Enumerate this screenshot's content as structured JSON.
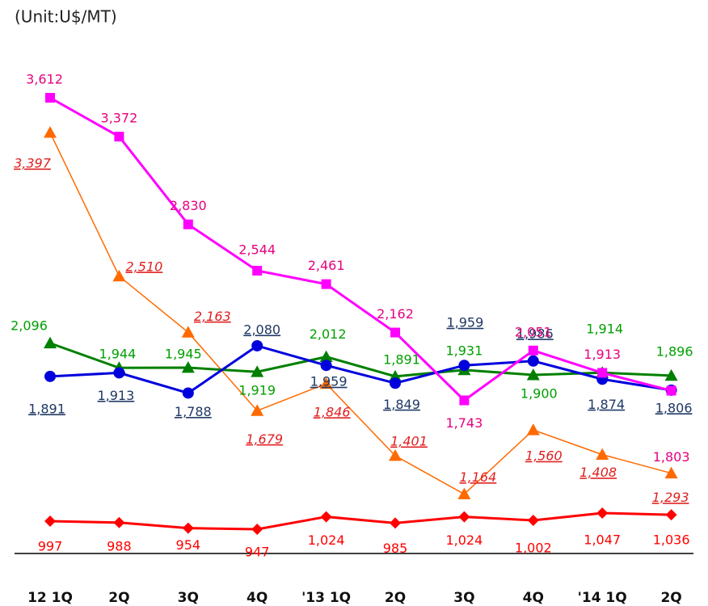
{
  "chart_data": {
    "type": "line",
    "title": "(Unit:U$/MT)",
    "categories": [
      "12 1Q",
      "2Q",
      "3Q",
      "4Q",
      "'13 1Q",
      "2Q",
      "3Q",
      "4Q",
      "'14 1Q",
      "2Q"
    ],
    "series": [
      {
        "color": "#ff0000",
        "marker": "diamond",
        "values": [
          997,
          988,
          954,
          947,
          1024,
          985,
          1024,
          1002,
          1047,
          1036
        ],
        "value_labels": [
          "997",
          "988",
          "954",
          "947",
          "1,024",
          "985",
          "1,024",
          "1,002",
          "1,047",
          "1,036"
        ]
      },
      {
        "color": "#ff6a00",
        "marker": "triangle",
        "values": [
          3397,
          2510,
          2163,
          1679,
          1846,
          1401,
          1164,
          1560,
          1408,
          1293
        ],
        "value_labels": [
          "3,397",
          "2,510",
          "2,163",
          "1,679",
          "1,846",
          "1,401",
          "1,164",
          "1,560",
          "1,408",
          "1,293"
        ]
      },
      {
        "color": "#008000",
        "marker": "triangle",
        "values": [
          2096,
          1944,
          1945,
          1919,
          2012,
          1891,
          1931,
          1900,
          1914,
          1896
        ],
        "value_labels": [
          "2,096",
          "1,944",
          "1,945",
          "1,919",
          "2,012",
          "1,891",
          "1,931",
          "1,900",
          "1,914",
          "1,896"
        ]
      },
      {
        "color": "#0000dd",
        "marker": "circle",
        "values": [
          1891,
          1913,
          1788,
          2080,
          1959,
          1849,
          1959,
          1986,
          1874,
          1806
        ],
        "value_labels": [
          "1,891",
          "1,913",
          "1,788",
          "2,080",
          "1,959",
          "1,849",
          "1,959",
          "1,986",
          "1,874",
          "1,806"
        ]
      },
      {
        "color": "#ff00ff",
        "marker": "square",
        "values": [
          3612,
          3372,
          2830,
          2544,
          2461,
          2162,
          1743,
          2051,
          1913,
          1803
        ],
        "value_labels": [
          "3,612",
          "3,372",
          "2,830",
          "2,544",
          "2,461",
          "2,162",
          "1,743",
          "2,051",
          "1,913",
          "1,803"
        ]
      }
    ]
  }
}
